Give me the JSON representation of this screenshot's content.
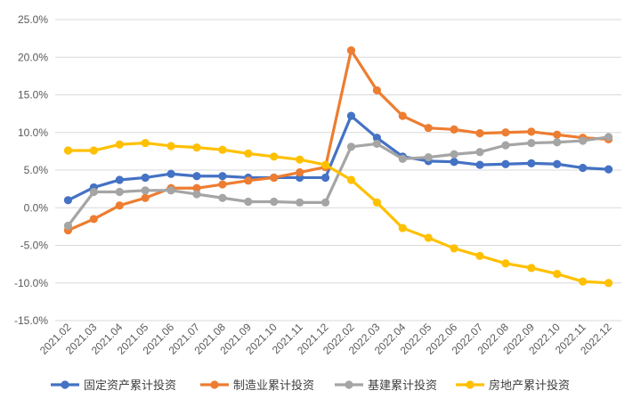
{
  "chart_data": {
    "type": "line",
    "title": "",
    "xlabel": "",
    "ylabel": "",
    "ylim": [
      -15,
      25
    ],
    "y_step": 5,
    "y_tick_format": "percent_1dp",
    "grid": {
      "horizontal": true,
      "vertical": false
    },
    "legend_placement": "bottom",
    "categories": [
      "2021.02",
      "2021.03",
      "2021.04",
      "2021.05",
      "2021.06",
      "2021.07",
      "2021.08",
      "2021.09",
      "2021.10",
      "2021.11",
      "2021.12",
      "2022.02",
      "2022.03",
      "2022.04",
      "2022.05",
      "2022.06",
      "2022.07",
      "2022.08",
      "2022.09",
      "2022.10",
      "2022.11",
      "2022.12"
    ],
    "series": [
      {
        "name": "固定资产累计投资",
        "color": "#4472C4",
        "values": [
          1.0,
          2.7,
          3.7,
          4.0,
          4.5,
          4.2,
          4.2,
          4.0,
          4.0,
          4.0,
          4.0,
          12.2,
          9.3,
          6.8,
          6.2,
          6.1,
          5.7,
          5.8,
          5.9,
          5.8,
          5.3,
          5.1
        ]
      },
      {
        "name": "制造业累计投资",
        "color": "#ED7D31",
        "values": [
          -3.0,
          -1.5,
          0.3,
          1.3,
          2.6,
          2.6,
          3.1,
          3.6,
          4.0,
          4.7,
          5.4,
          20.9,
          15.6,
          12.2,
          10.6,
          10.4,
          9.9,
          10.0,
          10.1,
          9.7,
          9.3,
          9.1
        ]
      },
      {
        "name": "基建累计投资",
        "color": "#A5A5A5",
        "values": [
          -2.4,
          2.1,
          2.1,
          2.3,
          2.3,
          1.8,
          1.3,
          0.8,
          0.8,
          0.7,
          0.7,
          8.1,
          8.5,
          6.5,
          6.7,
          7.1,
          7.4,
          8.3,
          8.6,
          8.7,
          8.9,
          9.4
        ]
      },
      {
        "name": "房地产累计投资",
        "color": "#FFC000",
        "values": [
          7.6,
          7.6,
          8.4,
          8.6,
          8.2,
          8.0,
          7.7,
          7.2,
          6.8,
          6.4,
          5.7,
          3.7,
          0.7,
          -2.7,
          -4.0,
          -5.4,
          -6.4,
          -7.4,
          -8.0,
          -8.8,
          -9.8,
          -10.0
        ]
      }
    ]
  }
}
